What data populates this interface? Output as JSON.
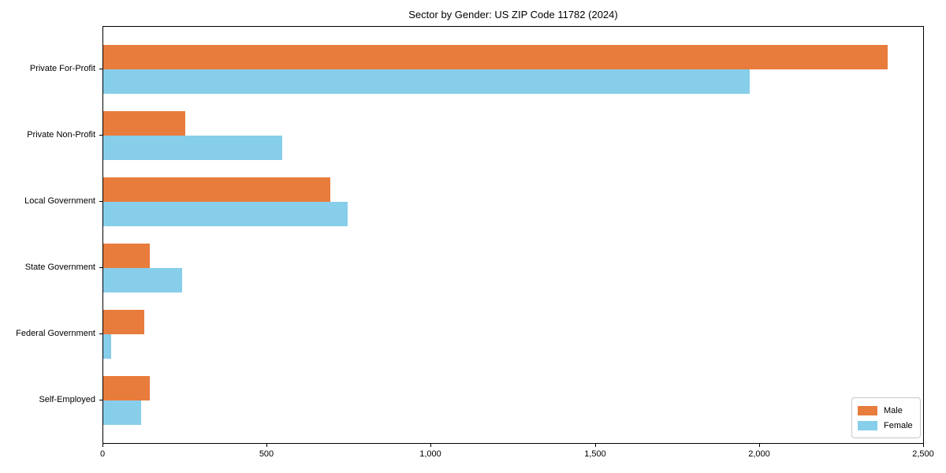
{
  "chart_data": {
    "type": "bar",
    "orientation": "horizontal",
    "title": "Sector by Gender: US ZIP Code 11782 (2024)",
    "categories": [
      "Private For-Profit",
      "Private Non-Profit",
      "Local Government",
      "State Government",
      "Federal Government",
      "Self-Employed"
    ],
    "series": [
      {
        "name": "Male",
        "color": "#e87c3c",
        "values": [
          2393,
          250,
          692,
          141,
          126,
          143
        ]
      },
      {
        "name": "Female",
        "color": "#87ceeb",
        "values": [
          1972,
          545,
          744,
          240,
          24,
          116
        ]
      }
    ],
    "xlabel": "",
    "ylabel": "",
    "xlim": [
      0,
      2500
    ],
    "x_ticks": [
      0,
      500,
      1000,
      1500,
      2000,
      2500
    ],
    "x_tick_labels": [
      "0",
      "500",
      "1,000",
      "1,500",
      "2,000",
      "2,500"
    ],
    "grid": false,
    "legend_position": "lower right"
  }
}
